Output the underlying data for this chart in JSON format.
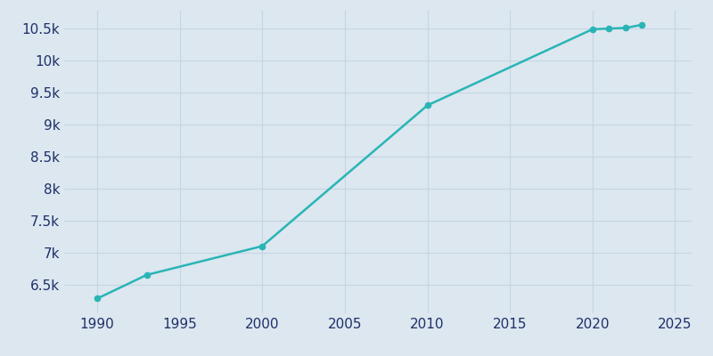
{
  "years": [
    1990,
    1993,
    2000,
    2010,
    2020,
    2021,
    2022,
    2023
  ],
  "population": [
    6280,
    6650,
    7100,
    9300,
    10490,
    10500,
    10510,
    10560
  ],
  "line_color": "#29b5b5",
  "marker_color": "#29b5b5",
  "bg_color": "#dce7f0",
  "plot_bg_color": "#dce7f0",
  "tick_color": "#1f3068",
  "grid_color": "#c5d5e5",
  "xlim": [
    1988,
    2026
  ],
  "ylim": [
    6050,
    10780
  ],
  "yticks": [
    6500,
    7000,
    7500,
    8000,
    8500,
    9000,
    9500,
    10000,
    10500
  ],
  "xticks": [
    1990,
    1995,
    2000,
    2005,
    2010,
    2015,
    2020,
    2025
  ],
  "figsize": [
    8.0,
    4.0
  ],
  "dpi": 100
}
